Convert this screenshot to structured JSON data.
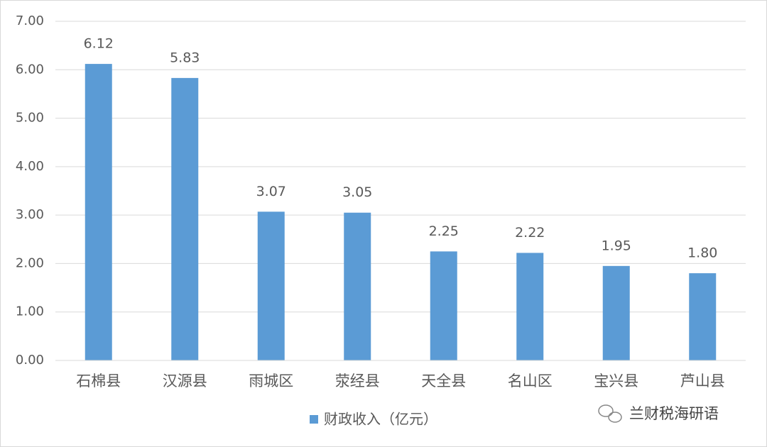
{
  "chart_data": {
    "type": "bar",
    "categories": [
      "石棉县",
      "汉源县",
      "雨城区",
      "荥经县",
      "天全县",
      "名山区",
      "宝兴县",
      "芦山县"
    ],
    "series": [
      {
        "name": "财政收入（亿元）",
        "color": "#5b9bd5",
        "values": [
          6.12,
          5.83,
          3.07,
          3.05,
          2.25,
          2.22,
          1.95,
          1.8
        ],
        "value_labels": [
          "6.12",
          "5.83",
          "3.07",
          "3.05",
          "2.25",
          "2.22",
          "1.95",
          "1.80"
        ]
      }
    ],
    "ylim": [
      0,
      7
    ],
    "yticks": [
      {
        "value": 0,
        "label": "0.00"
      },
      {
        "value": 1,
        "label": "1.00"
      },
      {
        "value": 2,
        "label": "2.00"
      },
      {
        "value": 3,
        "label": "3.00"
      },
      {
        "value": 4,
        "label": "4.00"
      },
      {
        "value": 5,
        "label": "5.00"
      },
      {
        "value": 6,
        "label": "6.00"
      },
      {
        "value": 7,
        "label": "7.00"
      }
    ],
    "grid": true,
    "legend": "bottom"
  },
  "watermark": "兰财税海研语"
}
